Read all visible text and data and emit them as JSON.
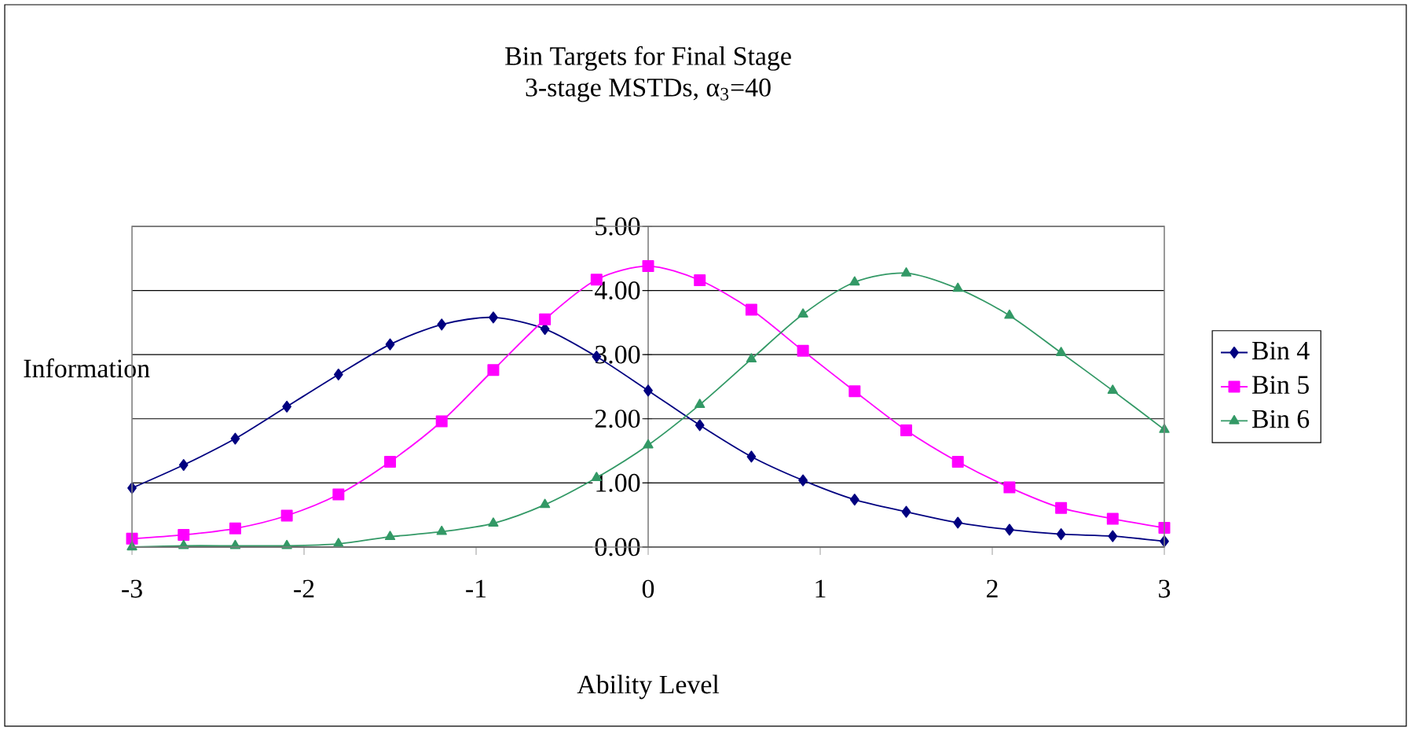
{
  "chart_data": {
    "type": "line",
    "title": "Bin Targets for Final Stage",
    "subtitle": "3-stage MSTDs, α$_{3}$=40",
    "xlabel": "Ability Level",
    "ylabel": "Information",
    "x": [
      -3,
      -2.7,
      -2.4,
      -2.1,
      -1.8,
      -1.5,
      -1.2,
      -0.9,
      -0.6,
      -0.3,
      0,
      0.3,
      0.6,
      0.9,
      1.2,
      1.5,
      1.8,
      2.1,
      2.4,
      2.7,
      3
    ],
    "series": [
      {
        "name": "Bin 4",
        "color": "#000080",
        "marker": "diamond",
        "values": [
          0.92,
          1.28,
          1.69,
          2.19,
          2.69,
          3.16,
          3.47,
          3.58,
          3.4,
          2.97,
          2.44,
          1.9,
          1.41,
          1.04,
          0.74,
          0.55,
          0.38,
          0.27,
          0.2,
          0.17,
          0.09
        ]
      },
      {
        "name": "Bin 5",
        "color": "#ff00ff",
        "marker": "square",
        "values": [
          0.13,
          0.19,
          0.29,
          0.49,
          0.82,
          1.33,
          1.96,
          2.76,
          3.55,
          4.17,
          4.38,
          4.16,
          3.7,
          3.06,
          2.43,
          1.82,
          1.33,
          0.93,
          0.61,
          0.44,
          0.3
        ]
      },
      {
        "name": "Bin 6",
        "color": "#339966",
        "marker": "triangle",
        "values": [
          0.0,
          0.02,
          0.02,
          0.02,
          0.05,
          0.16,
          0.24,
          0.37,
          0.66,
          1.08,
          1.59,
          2.22,
          2.93,
          3.63,
          4.13,
          4.27,
          4.03,
          3.61,
          3.03,
          2.44,
          1.83
        ]
      }
    ],
    "xlim": [
      -3,
      3
    ],
    "ylim": [
      0,
      5
    ],
    "xticks": [
      -3,
      -2,
      -1,
      0,
      1,
      2,
      3
    ],
    "yticks": [
      {
        "value": 0,
        "label": "0.00"
      },
      {
        "value": 1,
        "label": "1.00"
      },
      {
        "value": 2,
        "label": "2.00"
      },
      {
        "value": 3,
        "label": "3.00"
      },
      {
        "value": 4,
        "label": "4.00"
      },
      {
        "value": 5,
        "label": "5.00"
      }
    ],
    "grid": "y",
    "legend": "right",
    "line_style": "solid"
  }
}
